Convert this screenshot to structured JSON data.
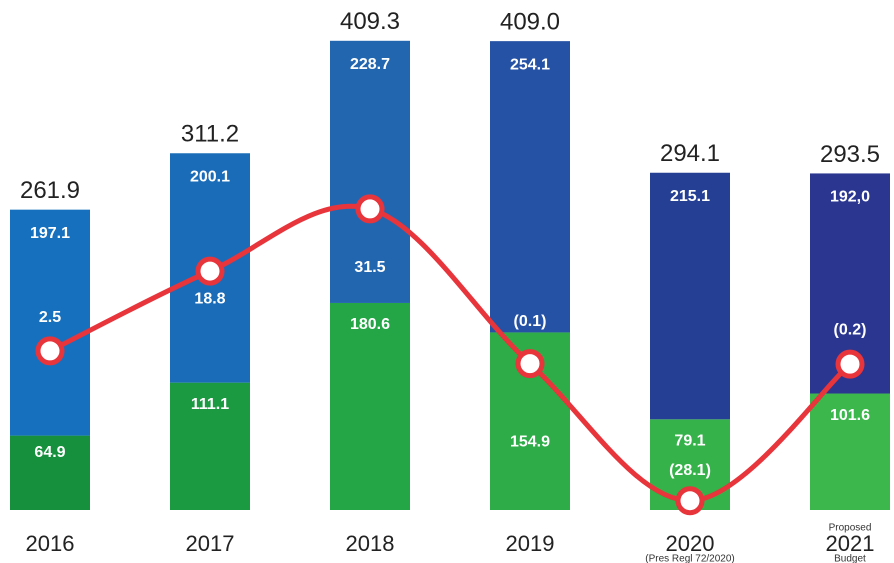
{
  "chart_data": {
    "type": "stacked_bar_line",
    "categories": [
      "2016",
      "2017",
      "2018",
      "2019",
      "2020",
      "2021"
    ],
    "category_notes_above": [
      null,
      null,
      null,
      null,
      null,
      "Proposed"
    ],
    "category_notes_below": [
      null,
      null,
      null,
      null,
      "(Pres Regl 72/2020)",
      "Budget"
    ],
    "totals": [
      261.9,
      311.2,
      409.3,
      409.0,
      294.1,
      293.5
    ],
    "total_labels": [
      "261.9",
      "311.2",
      "409.3",
      "409.0",
      "294.1",
      "293.5"
    ],
    "ylim": [
      0,
      410
    ],
    "y2lim": [
      -30,
      66
    ],
    "series": [
      {
        "colors": [
          "#17903d",
          "#1c9a42",
          "#25a646",
          "#2eac48",
          "#35b24a",
          "#3bb74c"
        ],
        "values": [
          64.9,
          111.1,
          180.6,
          154.9,
          79.1,
          101.6
        ]
      },
      {
        "colors": [
          "#1670be",
          "#1a6cb8",
          "#2366b0",
          "#2552a4",
          "#253f95",
          "#2a3690"
        ],
        "values": [
          197.1,
          200.1,
          228.7,
          254.1,
          215.1,
          192.0
        ],
        "value_labels": [
          "197.1",
          "200.1",
          "228.7",
          "254.1",
          "215.1",
          "192,0"
        ]
      },
      {
        "type": "line",
        "axis": "y2",
        "color": "#e8343b",
        "values": [
          2.5,
          18.8,
          31.5,
          -0.1,
          -28.1,
          -0.2
        ],
        "value_labels": [
          "2.5",
          "18.8",
          "31.5",
          "(0.1)",
          "(28.1)",
          "(0.2)"
        ]
      }
    ]
  }
}
